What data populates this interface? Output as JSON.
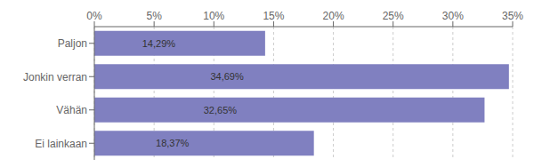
{
  "chart_data": {
    "type": "bar",
    "orientation": "horizontal",
    "categories": [
      "Paljon",
      "Jonkin verran",
      "Vähän",
      "Ei lainkaan"
    ],
    "values": [
      14.29,
      34.69,
      32.65,
      18.37
    ],
    "value_labels": [
      "14,29%",
      "34,69%",
      "32,65%",
      "18,37%"
    ],
    "data_labels": true,
    "color": "#8080c0",
    "xlim": [
      0,
      35
    ],
    "xticks": [
      {
        "value": 0,
        "label": "0%"
      },
      {
        "value": 5,
        "label": "5%"
      },
      {
        "value": 10,
        "label": "10%"
      },
      {
        "value": 15,
        "label": "15%"
      },
      {
        "value": 20,
        "label": "20%"
      },
      {
        "value": 25,
        "label": "25%"
      },
      {
        "value": 30,
        "label": "30%"
      },
      {
        "value": 35,
        "label": "35%"
      }
    ],
    "grid": true
  }
}
